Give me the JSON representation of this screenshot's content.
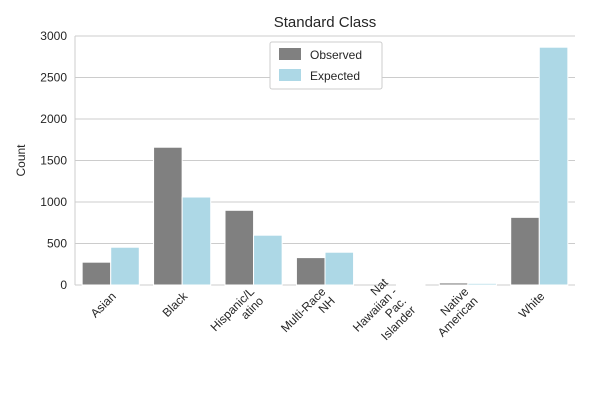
{
  "chart_data": {
    "type": "bar",
    "title": "Standard Class",
    "xlabel": "",
    "ylabel": "Count",
    "ylim": [
      0,
      3000
    ],
    "yticks": [
      0,
      500,
      1000,
      1500,
      2000,
      2500,
      3000
    ],
    "grid": "horizontal",
    "legend_position": "top-center",
    "categories": [
      [
        "Asian"
      ],
      [
        "Black"
      ],
      [
        "Hispanic/L",
        "atino"
      ],
      [
        "Multi-Race",
        "NH"
      ],
      [
        "Nat",
        "Hawaiian -",
        "Pac.",
        "Islander"
      ],
      [
        "Native",
        "American"
      ],
      [
        "White"
      ]
    ],
    "series": [
      {
        "name": "Observed",
        "color": "#808080",
        "values": [
          275,
          1660,
          900,
          330,
          0,
          25,
          815
        ]
      },
      {
        "name": "Expected",
        "color": "#add8e6",
        "values": [
          455,
          1060,
          600,
          395,
          10,
          20,
          2865
        ]
      }
    ]
  }
}
